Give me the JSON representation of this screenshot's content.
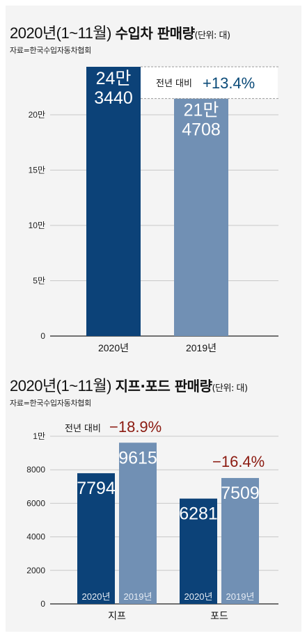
{
  "chart_data": [
    {
      "type": "bar",
      "title": "2020년(1~11월) 수입차 판매량",
      "title_plain": "2020년(1~11월) ",
      "title_bold": "수입차 판매량",
      "unit": "(단위: 대)",
      "source": "자료=한국수입자동차협회",
      "categories": [
        "2020년",
        "2019년"
      ],
      "values": [
        243440,
        214708
      ],
      "value_labels": [
        [
          "24만",
          "3440"
        ],
        [
          "21만",
          "4708"
        ]
      ],
      "colors": [
        "#0c4278",
        "#7190b4"
      ],
      "ylim": [
        0,
        243440
      ],
      "yticks": [
        0,
        50000,
        100000,
        150000,
        200000
      ],
      "ytick_labels": [
        "0",
        "5만",
        "10만",
        "15만",
        "20만"
      ],
      "grid": true,
      "annotation": {
        "label": "전년 대비",
        "value": "+13.4%"
      }
    },
    {
      "type": "bar",
      "title": "2020년(1~11월) 지프·포드 판매량",
      "title_plain": "2020년(1~11월) ",
      "title_bold": "지프·포드 판매량",
      "unit": "(단위: 대)",
      "source": "자료=한국수입자동차협회",
      "categories": [
        "지프",
        "포드"
      ],
      "series": [
        {
          "name": "2020년",
          "values": [
            7794,
            6281
          ],
          "color": "#0c4278"
        },
        {
          "name": "2019년",
          "values": [
            9615,
            7509
          ],
          "color": "#7190b4"
        }
      ],
      "ylim": [
        0,
        10000
      ],
      "yticks": [
        0,
        2000,
        4000,
        6000,
        8000,
        10000
      ],
      "ytick_labels": [
        "0",
        "2000",
        "4000",
        "6000",
        "8000",
        "1만"
      ],
      "grid": true,
      "annotations": [
        {
          "label": "전년 대비",
          "value": "−18.9%"
        },
        {
          "label": "",
          "value": "−16.4%"
        }
      ]
    }
  ]
}
